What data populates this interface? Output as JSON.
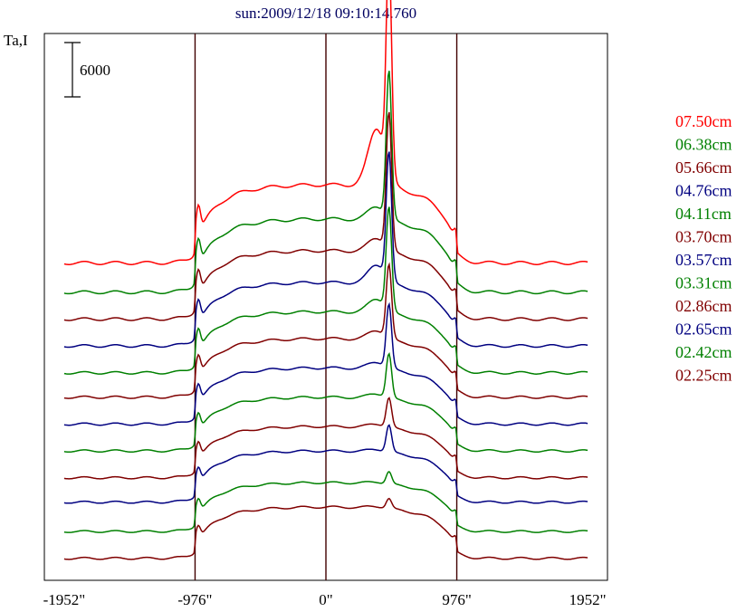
{
  "chart_data": {
    "type": "line",
    "title": "sun:2009/12/18 09:10:14.760",
    "ylabel": "Ta,I",
    "xlabel": "",
    "xlim": [
      -2100,
      2100
    ],
    "x_ticks": [
      -1952,
      -976,
      0,
      976,
      1952
    ],
    "x_tick_labels": [
      "-1952\"",
      "-976\"",
      "0\"",
      "976\"",
      "1952\""
    ],
    "vertical_lines": [
      -976,
      0,
      976
    ],
    "scale_bar": {
      "value": 6000,
      "label": "6000"
    },
    "grid": false,
    "legend_placement": "right",
    "colors": {
      "red": "#ff0000",
      "green": "#008000",
      "darkred": "#800000",
      "navy": "#000080",
      "frame": "#000000",
      "marker": "#400000",
      "title": "#000060"
    },
    "series": [
      {
        "name": "07.50cm",
        "color": "#ff0000",
        "base": 4200,
        "disk": 1600,
        "spike": 4400,
        "pre": 1200,
        "limbspike": 1200
      },
      {
        "name": "06.38cm",
        "color": "#008000",
        "base": 3600,
        "disk": 1500,
        "spike": 3000,
        "pre": 300,
        "limbspike": 1100
      },
      {
        "name": "05.66cm",
        "color": "#800000",
        "base": 3050,
        "disk": 1400,
        "spike": 2800,
        "pre": 300,
        "limbspike": 1000
      },
      {
        "name": "04.76cm",
        "color": "#000080",
        "base": 2500,
        "disk": 1300,
        "spike": 2600,
        "pre": 400,
        "limbspike": 950
      },
      {
        "name": "04.11cm",
        "color": "#008000",
        "base": 1950,
        "disk": 1250,
        "spike": 2100,
        "pre": 300,
        "limbspike": 900
      },
      {
        "name": "03.70cm",
        "color": "#800000",
        "base": 1450,
        "disk": 1200,
        "spike": 1500,
        "pre": 200,
        "limbspike": 850
      },
      {
        "name": "03.57cm",
        "color": "#000080",
        "base": 900,
        "disk": 1150,
        "spike": 1300,
        "pre": 150,
        "limbspike": 800
      },
      {
        "name": "03.31cm",
        "color": "#008000",
        "base": 350,
        "disk": 1100,
        "spike": 900,
        "pre": 100,
        "limbspike": 750
      },
      {
        "name": "02.86cm",
        "color": "#800000",
        "base": -200,
        "disk": 1050,
        "spike": 600,
        "pre": 80,
        "limbspike": 700
      },
      {
        "name": "02.65cm",
        "color": "#000080",
        "base": -700,
        "disk": 1050,
        "spike": 550,
        "pre": 60,
        "limbspike": 650
      },
      {
        "name": "02.42cm",
        "color": "#008000",
        "base": -1300,
        "disk": 1000,
        "spike": 250,
        "pre": 40,
        "limbspike": 600
      },
      {
        "name": "02.25cm",
        "color": "#800000",
        "base": -1850,
        "disk": 1050,
        "spike": 200,
        "pre": 40,
        "limbspike": 550
      }
    ],
    "y_range": [
      -2300,
      8900
    ]
  }
}
